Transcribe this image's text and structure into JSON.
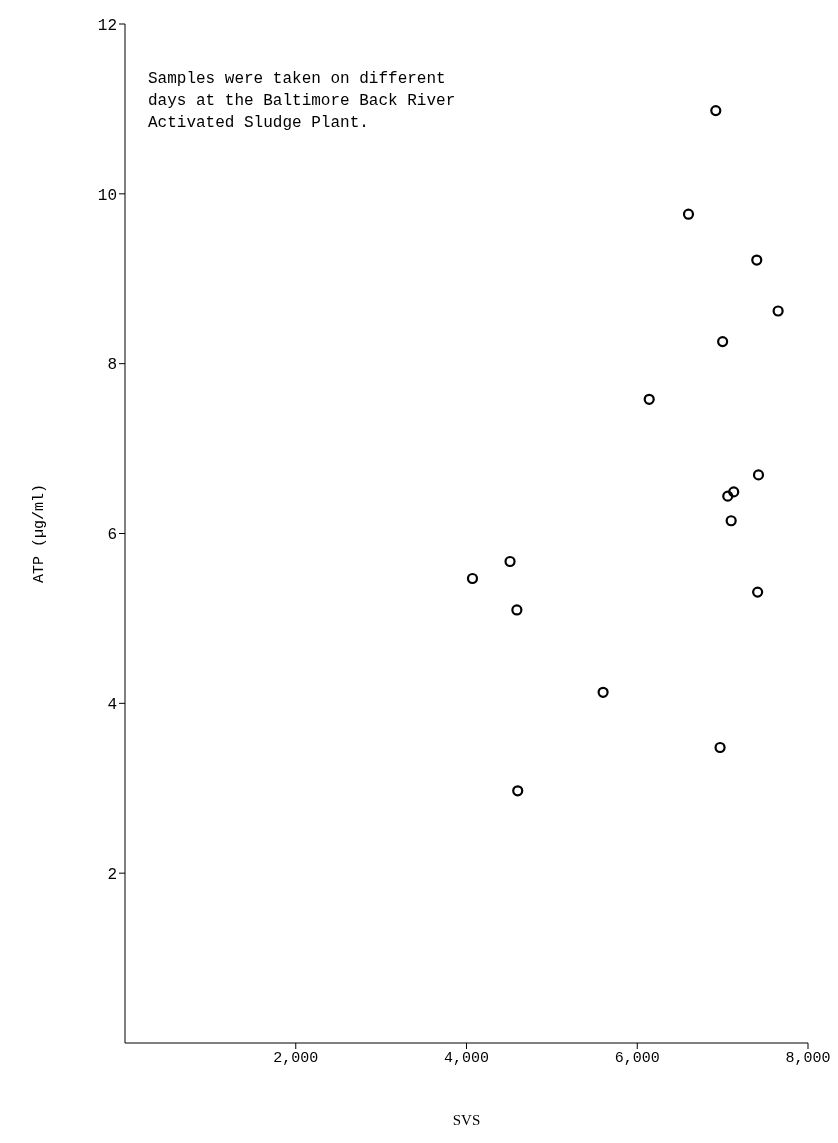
{
  "chart_data": {
    "type": "scatter",
    "xlabel": "SVS",
    "ylabel": "ATP (µg/ml)",
    "annotations": [
      "Samples were taken on different days at the Baltimore Back River Activated Sludge Plant."
    ],
    "x": [
      6920,
      6600,
      7400,
      7650,
      7000,
      6140,
      7420,
      7060,
      7130,
      7100,
      4070,
      4510,
      4590,
      7410,
      5600,
      6970,
      4600
    ],
    "values": [
      10.98,
      9.76,
      9.22,
      8.62,
      8.26,
      7.58,
      6.69,
      6.44,
      6.49,
      6.15,
      5.47,
      5.67,
      5.1,
      5.31,
      4.13,
      3.48,
      2.97
    ],
    "color": "#000000",
    "marker": "circle",
    "grid": false,
    "legend": false,
    "xlim": [
      0,
      8000
    ],
    "xticks": [
      {
        "value": 2000,
        "label": "2,000"
      },
      {
        "value": 4000,
        "label": "4,000"
      },
      {
        "value": 6000,
        "label": "6,000"
      },
      {
        "value": 8000,
        "label": "8,000"
      }
    ],
    "ylim": [
      0,
      12
    ],
    "yticks": [
      2,
      4,
      6,
      8,
      10,
      12
    ]
  }
}
